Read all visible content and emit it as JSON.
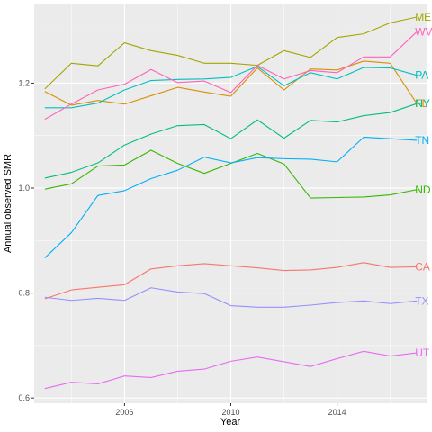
{
  "chart_data": {
    "type": "line",
    "title": "",
    "xlabel": "Year",
    "ylabel": "Annual observed SMR",
    "xlim": [
      2002.6,
      2017.4
    ],
    "ylim": [
      0.59,
      1.35
    ],
    "x_ticks": [
      2006,
      2010,
      2014
    ],
    "y_ticks": [
      0.6,
      0.8,
      1.0,
      1.2
    ],
    "y_tick_labels": [
      "0.6",
      "0.8",
      "1.0",
      "1.2"
    ],
    "grid": true,
    "legend": "direct labels at line ends",
    "panel_background": "#EBEBEB",
    "x": [
      2003,
      2004,
      2005,
      2006,
      2007,
      2008,
      2009,
      2010,
      2011,
      2012,
      2013,
      2014,
      2015,
      2016,
      2017
    ],
    "series": [
      {
        "name": "CA",
        "color": "#F8766D",
        "values": [
          0.789,
          0.806,
          0.811,
          0.816,
          0.846,
          0.852,
          0.856,
          0.852,
          0.848,
          0.843,
          0.844,
          0.849,
          0.858,
          0.849,
          0.85
        ]
      },
      {
        "name": "FL",
        "color": "#D89000",
        "values": [
          1.184,
          1.158,
          1.167,
          1.16,
          1.176,
          1.192,
          1.183,
          1.175,
          1.229,
          1.187,
          1.227,
          1.225,
          1.242,
          1.238,
          1.161
        ]
      },
      {
        "name": "ME",
        "color": "#A3A500",
        "values": [
          1.189,
          1.238,
          1.233,
          1.277,
          1.262,
          1.253,
          1.238,
          1.238,
          1.234,
          1.262,
          1.249,
          1.287,
          1.294,
          1.315,
          1.326
        ]
      },
      {
        "name": "ND",
        "color": "#39B600",
        "values": [
          0.998,
          1.008,
          1.042,
          1.044,
          1.072,
          1.047,
          1.028,
          1.047,
          1.066,
          1.046,
          0.981,
          0.982,
          0.983,
          0.987,
          0.997
        ]
      },
      {
        "name": "NY",
        "color": "#00BF7D",
        "values": [
          1.019,
          1.03,
          1.048,
          1.082,
          1.103,
          1.119,
          1.121,
          1.094,
          1.13,
          1.095,
          1.129,
          1.126,
          1.138,
          1.144,
          1.161
        ]
      },
      {
        "name": "PA",
        "color": "#00BFC4",
        "values": [
          1.153,
          1.153,
          1.162,
          1.187,
          1.205,
          1.207,
          1.208,
          1.211,
          1.232,
          1.195,
          1.22,
          1.208,
          1.23,
          1.229,
          1.215
        ]
      },
      {
        "name": "TN",
        "color": "#00B0F6",
        "values": [
          0.867,
          0.915,
          0.986,
          0.995,
          1.018,
          1.034,
          1.059,
          1.048,
          1.058,
          1.056,
          1.055,
          1.05,
          1.097,
          1.094,
          1.091
        ]
      },
      {
        "name": "TX",
        "color": "#9590FF",
        "values": [
          0.792,
          0.786,
          0.79,
          0.786,
          0.81,
          0.802,
          0.799,
          0.776,
          0.773,
          0.773,
          0.777,
          0.782,
          0.785,
          0.78,
          0.785
        ]
      },
      {
        "name": "UT",
        "color": "#E76BF3",
        "values": [
          0.618,
          0.63,
          0.627,
          0.642,
          0.639,
          0.651,
          0.655,
          0.67,
          0.678,
          0.669,
          0.66,
          0.675,
          0.689,
          0.68,
          0.686
        ]
      },
      {
        "name": "WV",
        "color": "#FF62BC",
        "values": [
          1.131,
          1.16,
          1.187,
          1.198,
          1.226,
          1.201,
          1.204,
          1.182,
          1.234,
          1.208,
          1.224,
          1.22,
          1.25,
          1.25,
          1.298
        ]
      }
    ]
  }
}
